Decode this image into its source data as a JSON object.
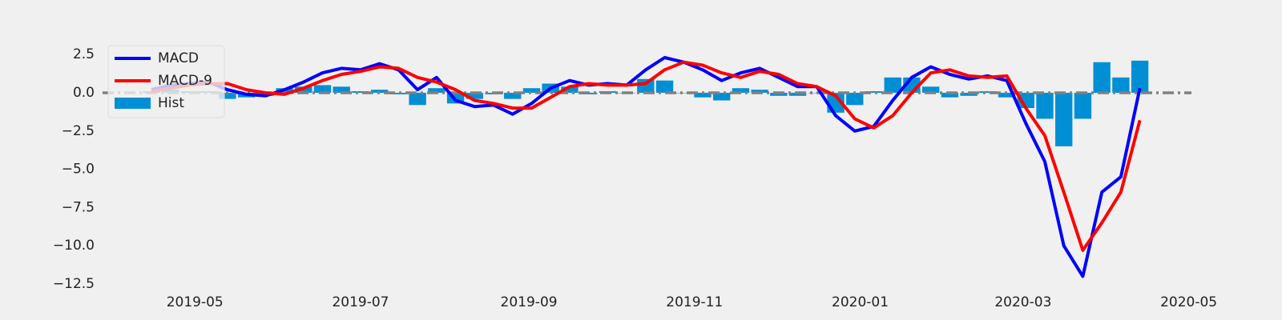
{
  "chart_data": {
    "type": "line",
    "x": [
      "2019-04-15",
      "2019-04-22",
      "2019-04-29",
      "2019-05-06",
      "2019-05-13",
      "2019-05-20",
      "2019-05-27",
      "2019-06-03",
      "2019-06-10",
      "2019-06-17",
      "2019-06-24",
      "2019-07-01",
      "2019-07-08",
      "2019-07-15",
      "2019-07-22",
      "2019-07-29",
      "2019-08-05",
      "2019-08-12",
      "2019-08-19",
      "2019-08-26",
      "2019-09-02",
      "2019-09-09",
      "2019-09-16",
      "2019-09-23",
      "2019-09-30",
      "2019-10-07",
      "2019-10-14",
      "2019-10-21",
      "2019-10-28",
      "2019-11-04",
      "2019-11-11",
      "2019-11-18",
      "2019-11-25",
      "2019-12-02",
      "2019-12-09",
      "2019-12-16",
      "2019-12-23",
      "2019-12-30",
      "2020-01-06",
      "2020-01-13",
      "2020-01-20",
      "2020-01-27",
      "2020-02-03",
      "2020-02-10",
      "2020-02-17",
      "2020-02-24",
      "2020-03-02",
      "2020-03-09",
      "2020-03-16",
      "2020-03-23",
      "2020-03-30",
      "2020-04-06",
      "2020-04-13"
    ],
    "series": [
      {
        "name": "MACD",
        "type": "line",
        "color": "#0000ff",
        "values": [
          0.2,
          0.5,
          0.6,
          0.7,
          0.2,
          -0.1,
          -0.2,
          0.2,
          0.7,
          1.3,
          1.6,
          1.5,
          1.9,
          1.5,
          0.2,
          1.0,
          -0.5,
          -0.9,
          -0.8,
          -1.4,
          -0.7,
          0.3,
          0.8,
          0.5,
          0.6,
          0.5,
          1.5,
          2.3,
          2.0,
          1.5,
          0.8,
          1.3,
          1.6,
          1.0,
          0.4,
          0.4,
          -1.5,
          -2.5,
          -2.2,
          -0.5,
          1.0,
          1.7,
          1.2,
          0.9,
          1.1,
          0.8,
          -2.0,
          -4.5,
          -10.0,
          -12.0,
          -6.5,
          -5.5,
          0.3
        ]
      },
      {
        "name": "MACD-9",
        "type": "line",
        "color": "#ff0000",
        "values": [
          0.1,
          0.3,
          0.5,
          0.6,
          0.6,
          0.2,
          0.0,
          -0.1,
          0.3,
          0.8,
          1.2,
          1.4,
          1.7,
          1.6,
          1.0,
          0.7,
          0.2,
          -0.5,
          -0.7,
          -1.0,
          -1.0,
          -0.3,
          0.4,
          0.6,
          0.5,
          0.5,
          0.6,
          1.5,
          2.0,
          1.8,
          1.3,
          1.0,
          1.4,
          1.2,
          0.6,
          0.4,
          -0.2,
          -1.7,
          -2.3,
          -1.5,
          0.0,
          1.3,
          1.5,
          1.1,
          1.0,
          1.1,
          -1.0,
          -2.8,
          -6.5,
          -10.3,
          -8.5,
          -6.5,
          -1.8
        ]
      },
      {
        "name": "Hist",
        "type": "bar",
        "color": "#008fd5",
        "values": [
          0.1,
          0.2,
          0.1,
          0.1,
          -0.4,
          -0.3,
          -0.2,
          0.3,
          0.4,
          0.5,
          0.4,
          0.1,
          0.2,
          -0.1,
          -0.8,
          0.3,
          -0.7,
          -0.4,
          -0.1,
          -0.4,
          0.3,
          0.6,
          0.4,
          -0.1,
          0.1,
          0.0,
          0.9,
          0.8,
          0.0,
          -0.3,
          -0.5,
          0.3,
          0.2,
          -0.2,
          -0.2,
          0.0,
          -1.3,
          -0.8,
          0.1,
          1.0,
          1.0,
          0.4,
          -0.3,
          -0.2,
          0.1,
          -0.3,
          -1.0,
          -1.7,
          -3.5,
          -1.7,
          2.0,
          1.0,
          2.1
        ]
      }
    ],
    "hline": {
      "value": 0,
      "color": "#808080"
    },
    "xlim": [
      "2019-03-28",
      "2020-05-02"
    ],
    "xticks": [
      {
        "value": "2019-05-01",
        "label": "2019-05"
      },
      {
        "value": "2019-07-01",
        "label": "2019-07"
      },
      {
        "value": "2019-09-01",
        "label": "2019-09"
      },
      {
        "value": "2019-11-01",
        "label": "2019-11"
      },
      {
        "value": "2020-01-01",
        "label": "2020-01"
      },
      {
        "value": "2020-03-01",
        "label": "2020-03"
      },
      {
        "value": "2020-05-01",
        "label": "2020-05"
      }
    ],
    "ylim": [
      -12.9,
      3.9
    ],
    "yticks": [
      2.5,
      {
        "value": 0,
        "label": "0.0"
      },
      {
        "value": -2.5,
        "label": "−2.5"
      },
      {
        "value": -5,
        "label": "−5.0"
      },
      {
        "value": -7.5,
        "label": "−7.5"
      },
      {
        "value": -10,
        "label": "−10.0"
      },
      {
        "value": -12.5,
        "label": "−12.5"
      }
    ],
    "legend": "upper left"
  }
}
